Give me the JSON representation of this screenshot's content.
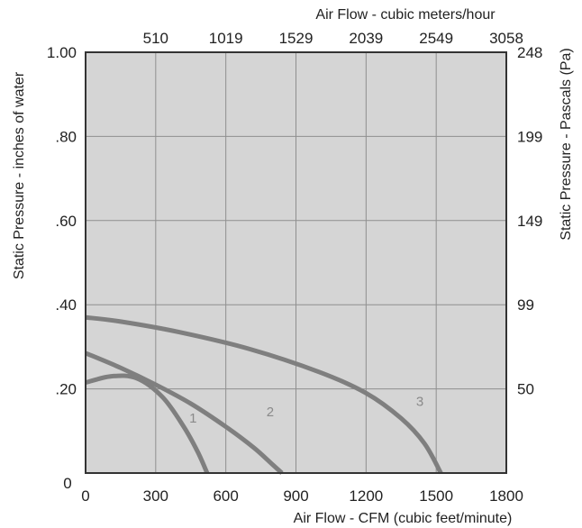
{
  "chart_data": {
    "type": "line",
    "title": "",
    "xlabel": "Air Flow - CFM (cubic feet/minute)",
    "ylabel": "Static Pressure - inches of water",
    "x2label": "Air Flow - cubic meters/hour",
    "y2label": "Static Pressure - Pascals (Pa)",
    "xlim": [
      0,
      1800
    ],
    "ylim": [
      0,
      1.0
    ],
    "x_ticks": [
      {
        "value": 0,
        "label": "0"
      },
      {
        "value": 300,
        "label": "300"
      },
      {
        "value": 600,
        "label": "600"
      },
      {
        "value": 900,
        "label": "900"
      },
      {
        "value": 1200,
        "label": "1200"
      },
      {
        "value": 1500,
        "label": "1500"
      },
      {
        "value": 1800,
        "label": "1800"
      }
    ],
    "y_ticks": [
      {
        "value": 0.2,
        "label": ".20"
      },
      {
        "value": 0.4,
        "label": ".40"
      },
      {
        "value": 0.6,
        "label": ".60"
      },
      {
        "value": 0.8,
        "label": ".80"
      },
      {
        "value": 1.0,
        "label": "1.00"
      }
    ],
    "x2_ticks": [
      {
        "value": 300,
        "label": "510"
      },
      {
        "value": 600,
        "label": "1019"
      },
      {
        "value": 900,
        "label": "1529"
      },
      {
        "value": 1200,
        "label": "2039"
      },
      {
        "value": 1500,
        "label": "2549"
      },
      {
        "value": 1800,
        "label": "3058"
      }
    ],
    "y2_ticks": [
      {
        "value": 0.2,
        "label": "50"
      },
      {
        "value": 0.4,
        "label": "99"
      },
      {
        "value": 0.6,
        "label": "149"
      },
      {
        "value": 0.8,
        "label": "199"
      },
      {
        "value": 1.0,
        "label": "248"
      }
    ],
    "grid": true,
    "series": [
      {
        "label": "1",
        "label_at": [
          460,
          0.12
        ],
        "x": [
          0,
          110,
          220,
          330,
          420,
          480,
          520
        ],
        "y": [
          0.215,
          0.23,
          0.225,
          0.18,
          0.11,
          0.05,
          0.0
        ]
      },
      {
        "label": "2",
        "label_at": [
          790,
          0.135
        ],
        "x": [
          0,
          150,
          300,
          450,
          600,
          720,
          800,
          840
        ],
        "y": [
          0.285,
          0.25,
          0.21,
          0.165,
          0.11,
          0.06,
          0.02,
          0.0
        ]
      },
      {
        "label": "3",
        "label_at": [
          1430,
          0.16
        ],
        "x": [
          0,
          150,
          400,
          700,
          1000,
          1200,
          1350,
          1450,
          1520
        ],
        "y": [
          0.37,
          0.36,
          0.335,
          0.295,
          0.24,
          0.19,
          0.13,
          0.07,
          0.0
        ]
      }
    ]
  }
}
